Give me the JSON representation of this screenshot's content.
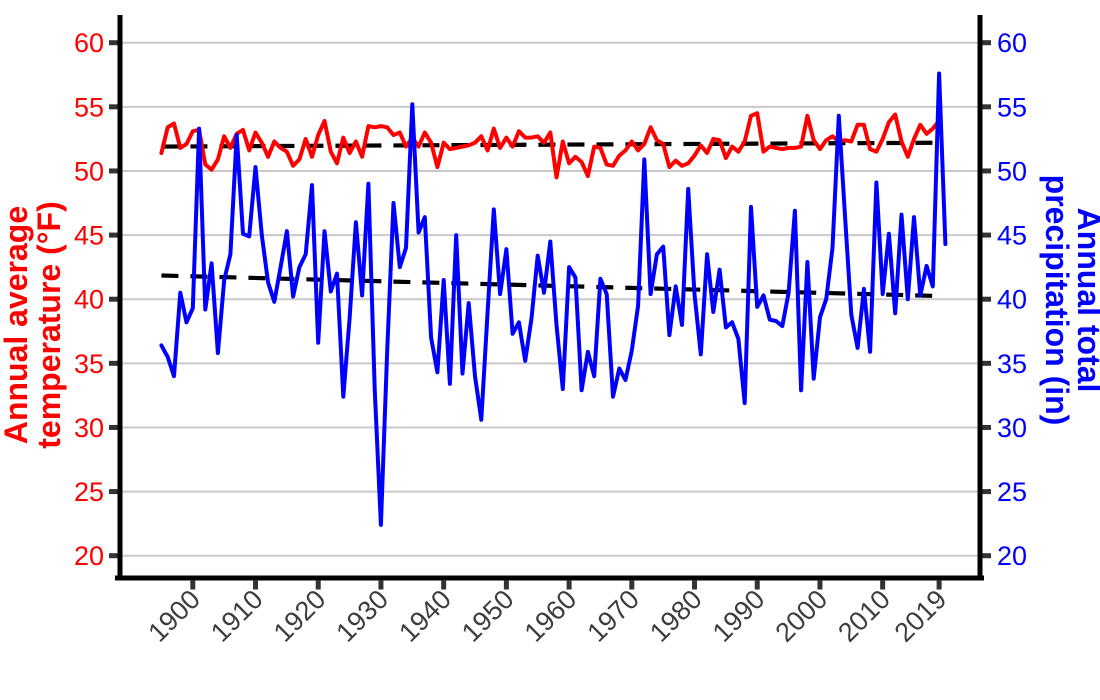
{
  "figure": {
    "background": "#ffffff",
    "grid_color": "#c9c9c9",
    "axis_line_color": "#000000",
    "tick_color": "#333333",
    "x_label_color": "#3d3d3d",
    "left_axis": {
      "title_line1": "Annual average",
      "title_line2": "temperature (°F)",
      "color": "#ff0000",
      "tick_labels": [
        "20",
        "25",
        "30",
        "35",
        "40",
        "45",
        "50",
        "55",
        "60"
      ]
    },
    "right_axis": {
      "title_line1": "Annual total",
      "title_line2": "precipitation (in)",
      "color": "#0000ff",
      "tick_labels": [
        "20",
        "25",
        "30",
        "35",
        "40",
        "45",
        "50",
        "55",
        "60"
      ]
    },
    "x_axis": {
      "tick_labels": [
        "1900",
        "1910",
        "1920",
        "1930",
        "1940",
        "1950",
        "1960",
        "1970",
        "1980",
        "1990",
        "2000",
        "2010",
        "2019"
      ],
      "tick_years": [
        1900,
        1910,
        1920,
        1930,
        1940,
        1950,
        1960,
        1970,
        1980,
        1990,
        2000,
        2010,
        2019
      ]
    }
  },
  "chart_data": {
    "type": "line",
    "title": "",
    "xlabel": "",
    "ylabel_left": "Annual average temperature (°F)",
    "ylabel_right": "Annual total precipitation (in)",
    "ylim": [
      20,
      60
    ],
    "yticks": [
      20,
      25,
      30,
      35,
      40,
      45,
      50,
      55,
      60
    ],
    "grid": "horizontal-only",
    "legend_position": "none",
    "years": {
      "start": 1895,
      "end": 2019,
      "step": 1
    },
    "series": [
      {
        "name": "Annual average temperature (°F)",
        "axis": "left",
        "color": "#ff0000",
        "style": "solid",
        "values": [
          51.4,
          53.4,
          53.7,
          51.8,
          52.1,
          53.1,
          53.2,
          50.5,
          50.1,
          50.9,
          52.7,
          51.8,
          52.9,
          53.2,
          51.6,
          53.0,
          52.2,
          51.1,
          52.3,
          51.8,
          51.5,
          50.4,
          50.9,
          52.5,
          51.1,
          52.8,
          53.9,
          51.5,
          50.6,
          52.6,
          51.4,
          52.3,
          51.1,
          53.5,
          53.4,
          53.5,
          53.4,
          52.8,
          53.0,
          51.9,
          52.6,
          51.9,
          53.0,
          52.2,
          50.3,
          52.2,
          51.7,
          51.8,
          51.9,
          52.0,
          52.2,
          52.7,
          51.6,
          53.3,
          51.8,
          52.6,
          51.9,
          53.1,
          52.6,
          52.6,
          52.7,
          52.2,
          53.0,
          49.5,
          52.3,
          50.6,
          51.1,
          50.7,
          49.6,
          51.9,
          51.8,
          50.5,
          50.4,
          51.2,
          51.6,
          52.3,
          51.6,
          52.1,
          53.4,
          52.4,
          52.1,
          50.3,
          50.8,
          50.4,
          50.6,
          51.2,
          52.0,
          51.4,
          52.5,
          52.4,
          51.0,
          51.9,
          51.5,
          52.3,
          54.3,
          54.5,
          51.5,
          51.9,
          51.8,
          51.7,
          51.8,
          51.8,
          51.9,
          54.3,
          52.4,
          51.7,
          52.4,
          52.7,
          52.3,
          52.4,
          52.3,
          53.6,
          53.6,
          51.7,
          51.5,
          52.5,
          53.8,
          54.4,
          52.3,
          51.1,
          52.5,
          53.6,
          52.9,
          53.3,
          53.9
        ]
      },
      {
        "name": "Annual total precipitation (in)",
        "axis": "right",
        "color": "#0000ff",
        "style": "solid",
        "values": [
          36.4,
          35.5,
          34.0,
          40.5,
          38.2,
          39.3,
          53.3,
          39.2,
          42.8,
          35.8,
          41.5,
          43.5,
          52.8,
          45.1,
          44.9,
          50.3,
          45.0,
          41.3,
          39.8,
          42.5,
          45.3,
          40.2,
          42.5,
          43.5,
          48.9,
          36.6,
          45.3,
          40.6,
          42.0,
          32.4,
          38.5,
          46.0,
          40.3,
          49.0,
          33.0,
          22.4,
          36.0,
          47.5,
          42.5,
          44.0,
          55.2,
          45.2,
          46.4,
          37.0,
          34.3,
          41.5,
          33.4,
          45.0,
          34.2,
          39.7,
          34.0,
          30.6,
          39.0,
          47.0,
          40.4,
          43.9,
          37.3,
          38.2,
          35.2,
          38.5,
          43.4,
          40.5,
          44.5,
          38.0,
          33.0,
          42.5,
          41.7,
          32.9,
          35.9,
          34.0,
          41.6,
          40.4,
          32.4,
          34.6,
          33.7,
          36.0,
          39.5,
          50.9,
          40.4,
          43.5,
          44.1,
          37.2,
          41.0,
          38.0,
          48.6,
          40.4,
          35.7,
          43.5,
          39.0,
          42.3,
          37.8,
          38.2,
          36.9,
          31.9,
          47.2,
          39.4,
          40.3,
          38.4,
          38.3,
          37.9,
          40.5,
          46.9,
          32.9,
          42.9,
          33.8,
          38.6,
          40.0,
          44.0,
          54.3,
          46.5,
          38.8,
          36.2,
          40.8,
          35.9,
          49.1,
          40.4,
          45.1,
          38.9,
          46.6,
          40.0,
          46.4,
          40.3,
          42.6,
          41.0,
          57.6,
          44.3
        ]
      },
      {
        "name": "Temperature trend",
        "axis": "left",
        "color": "#000000",
        "style": "dashed",
        "endpoints": [
          51.9,
          52.2
        ]
      },
      {
        "name": "Precipitation trend",
        "axis": "right",
        "color": "#000000",
        "style": "dashed",
        "endpoints": [
          41.85,
          40.25
        ]
      }
    ]
  }
}
